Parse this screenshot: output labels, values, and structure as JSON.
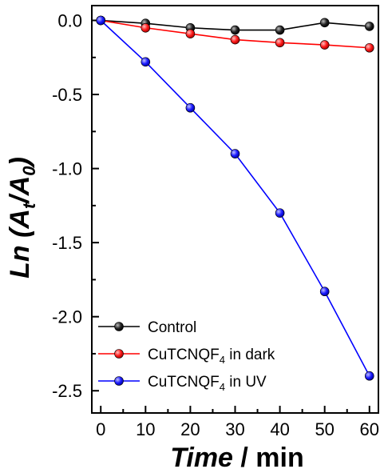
{
  "chart_data": {
    "type": "line",
    "x": [
      0,
      10,
      20,
      30,
      40,
      50,
      60
    ],
    "xlabel": {
      "italic_part": "Time",
      "rest": " / min"
    },
    "ylabel": {
      "prefix": "Ln (A",
      "sub1": "t",
      "mid": "/A",
      "sub2": "0",
      "suffix": ")"
    },
    "xlim": [
      -2,
      62
    ],
    "ylim": [
      -2.65,
      0.1
    ],
    "xticks": [
      0,
      10,
      20,
      30,
      40,
      50,
      60
    ],
    "yticks": [
      0.0,
      -0.5,
      -1.0,
      -1.5,
      -2.0,
      -2.5
    ],
    "ytick_labels": [
      "0.0",
      "-0.5",
      "-1.0",
      "-1.5",
      "-2.0",
      "-2.5"
    ],
    "grid": false,
    "legend_position": "bottom-left",
    "series": [
      {
        "name": "Control",
        "name_parts": [
          "Control",
          "",
          ""
        ],
        "color": "#000000",
        "marker_color": "#222222",
        "values": [
          0.0,
          -0.02,
          -0.05,
          -0.065,
          -0.065,
          -0.015,
          -0.04
        ]
      },
      {
        "name": "CuTCNQF4 in dark",
        "name_parts": [
          "CuTCNQF",
          "4",
          " in dark"
        ],
        "color": "#ff0000",
        "marker_color": "#ff2a2a",
        "values": [
          0.0,
          -0.05,
          -0.09,
          -0.13,
          -0.15,
          -0.165,
          -0.185
        ]
      },
      {
        "name": "CuTCNQF4 in UV",
        "name_parts": [
          "CuTCNQF",
          "4",
          " in UV"
        ],
        "color": "#0000ff",
        "marker_color": "#2a2aff",
        "values": [
          0.0,
          -0.28,
          -0.59,
          -0.9,
          -1.3,
          -1.83,
          -2.4
        ]
      }
    ]
  }
}
